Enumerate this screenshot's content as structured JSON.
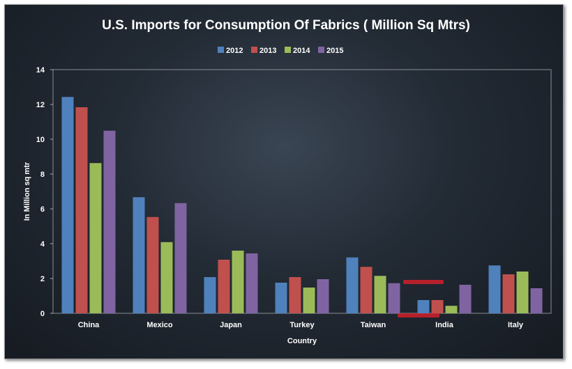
{
  "chart_data": {
    "type": "bar",
    "title": "U.S. Imports for Consumption  Of Fabrics ( Million Sq Mtrs)",
    "xlabel": "Country",
    "ylabel": "In Million sq mtr",
    "ylim": [
      0,
      14
    ],
    "yticks": [
      "0",
      "2",
      "4",
      "6",
      "8",
      "10",
      "12",
      "14"
    ],
    "legend_position": "top-center",
    "categories": [
      "China",
      "Mexico",
      "Japan",
      "Turkey",
      "Taiwan",
      "India",
      "Italy"
    ],
    "series": [
      {
        "name": "2012",
        "color": "#4f81bd",
        "values": [
          12.43,
          6.67,
          2.08,
          1.76,
          3.21,
          0.76,
          2.75
        ]
      },
      {
        "name": "2013",
        "color": "#c0504d",
        "values": [
          11.84,
          5.53,
          3.08,
          2.08,
          2.67,
          0.76,
          2.24
        ]
      },
      {
        "name": "2014",
        "color": "#9bbb59",
        "values": [
          8.63,
          4.09,
          3.6,
          1.48,
          2.15,
          0.43,
          2.4
        ]
      },
      {
        "name": "2015",
        "color": "#8064a2",
        "values": [
          10.49,
          6.33,
          3.44,
          1.96,
          1.73,
          1.64,
          1.44
        ]
      }
    ]
  }
}
